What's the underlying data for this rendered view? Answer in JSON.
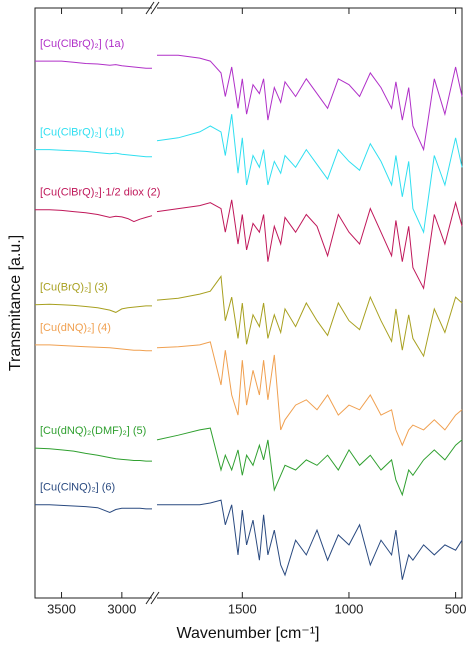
{
  "chart_data": {
    "type": "line",
    "xlabel": "Wavenumber [cm⁻¹]",
    "ylabel": "Transmitance [a.u.]",
    "xlim": [
      3720,
      470
    ],
    "x_break": [
      2750,
      1900
    ],
    "ylim": [
      0,
      100
    ],
    "xticks": [
      3500,
      3000,
      1500,
      1000,
      500
    ],
    "x": [
      3720,
      3600,
      3500,
      3400,
      3300,
      3200,
      3100,
      3050,
      3000,
      2950,
      2900,
      2850,
      2800,
      2750,
      1900,
      1800,
      1700,
      1650,
      1600,
      1580,
      1550,
      1520,
      1500,
      1480,
      1450,
      1420,
      1400,
      1380,
      1350,
      1320,
      1300,
      1250,
      1200,
      1150,
      1100,
      1050,
      1000,
      950,
      900,
      850,
      800,
      780,
      750,
      720,
      700,
      650,
      600,
      550,
      500,
      470
    ],
    "series": [
      {
        "name": "[Cu(ClBrQ)₂] (1a)",
        "color": "#b030c8",
        "values": [
          91,
          91,
          91,
          90.8,
          90.6,
          90.5,
          90.3,
          90.4,
          90.2,
          90.1,
          90,
          89.9,
          89.8,
          89.8,
          92,
          92,
          91.5,
          91,
          89,
          85,
          90,
          83,
          88,
          82,
          87,
          85.5,
          88,
          81,
          86.5,
          84,
          87.5,
          85,
          88,
          85.5,
          83,
          88,
          87,
          85,
          89,
          86.5,
          83,
          87.5,
          81,
          86.5,
          80,
          76,
          88,
          82,
          90,
          85
        ]
      },
      {
        "name": "[Cu(ClBrQ)₂] (1b)",
        "color": "#30dff0",
        "values": [
          76,
          76,
          75.9,
          75.8,
          75.7,
          75.5,
          75.3,
          75.4,
          75.2,
          75.1,
          75,
          74.9,
          74.8,
          74.8,
          77.5,
          78,
          79,
          80,
          79,
          75,
          82,
          72,
          78,
          70,
          75,
          73,
          76,
          70,
          74,
          72,
          75,
          73,
          76,
          73.5,
          71,
          76,
          74,
          72.5,
          77,
          74,
          70,
          75,
          68,
          74,
          66,
          62,
          75,
          70,
          78,
          73
        ]
      },
      {
        "name": "[Cu(ClBrQ)₂]·1/2 diox (2)",
        "color": "#c0185a",
        "values": [
          65.8,
          65.8,
          65.7,
          65.5,
          65.3,
          65,
          64.5,
          64.7,
          64.6,
          64.3,
          63.8,
          64.2,
          64.5,
          64.8,
          65.5,
          66,
          66.5,
          67,
          66,
          62,
          67.5,
          60,
          65,
          59,
          63.5,
          62,
          65,
          57,
          63,
          60,
          64.5,
          62,
          65,
          63,
          58,
          65,
          62,
          60,
          66,
          62,
          58,
          64,
          57,
          63,
          56,
          52.5,
          65,
          60,
          67,
          63
        ]
      },
      {
        "name": "[Cu(BrQ)₂] (3)",
        "color": "#a8a020",
        "values": [
          49.7,
          49.8,
          49.7,
          49.6,
          49.4,
          49.2,
          48.8,
          48.4,
          49,
          49.2,
          49.3,
          49.4,
          49.5,
          49.5,
          50.5,
          50.8,
          51.5,
          52,
          54.5,
          47,
          51,
          44,
          50,
          43,
          48,
          46,
          50,
          44,
          48,
          45,
          49,
          46,
          50,
          47,
          44.5,
          50,
          47,
          45.5,
          51,
          47,
          43.5,
          49,
          42,
          48,
          44,
          41,
          49,
          45,
          51,
          50
        ]
      },
      {
        "name": "[Cu(dNQ)₂] (4)",
        "color": "#f0a050",
        "values": [
          42.9,
          42.9,
          42.8,
          42.7,
          42.6,
          42.5,
          42.4,
          42.3,
          42.2,
          42.1,
          42,
          42,
          41.9,
          41.9,
          42.4,
          42.6,
          42.9,
          43.4,
          36.1,
          42,
          34.4,
          31,
          40.3,
          32.7,
          38.6,
          34.4,
          40.3,
          33.6,
          41.2,
          28.5,
          30.2,
          32.7,
          33.6,
          31.9,
          34.4,
          31,
          32.7,
          31.9,
          34.4,
          31,
          31.9,
          28.5,
          25.9,
          28.5,
          29.3,
          28.5,
          30.2,
          28.5,
          31,
          31.9
        ]
      },
      {
        "name": "[Cu(dNQ)₂(DMF)₂] (5)",
        "color": "#30a030",
        "values": [
          25.4,
          25.3,
          25.1,
          24.9,
          24.5,
          24.2,
          23.8,
          23.6,
          23.5,
          23.4,
          23.3,
          23.3,
          23.2,
          23.2,
          26.8,
          27.6,
          28.5,
          28.8,
          21.7,
          24.2,
          21.7,
          25.1,
          20.8,
          24.2,
          22.5,
          25.9,
          23.4,
          26.8,
          18.3,
          20.8,
          22.5,
          21.7,
          23.4,
          22.5,
          24.2,
          21.7,
          25.1,
          22.5,
          24.2,
          21.7,
          23.4,
          20,
          17.5,
          21.7,
          20.8,
          23.4,
          25.1,
          23.4,
          25.9,
          26.8
        ]
      },
      {
        "name": "[Cu(ClNQ)₂] (6)",
        "color": "#2a4a80",
        "values": [
          15.8,
          15.8,
          15.7,
          15.6,
          15.5,
          15.3,
          14.5,
          15,
          15.2,
          15.2,
          15.2,
          15.2,
          15.1,
          15.1,
          15.8,
          15.8,
          15.8,
          16.1,
          16.6,
          12.4,
          15.8,
          7.3,
          14.9,
          9,
          13.2,
          6.4,
          14.1,
          7.3,
          11.5,
          5.6,
          3.9,
          9.8,
          7.3,
          11.5,
          6.4,
          10.7,
          9,
          12.4,
          5.6,
          9.8,
          7.3,
          11.5,
          3.1,
          7.3,
          6.4,
          9,
          7.3,
          9,
          8.1,
          9.8
        ]
      }
    ]
  }
}
